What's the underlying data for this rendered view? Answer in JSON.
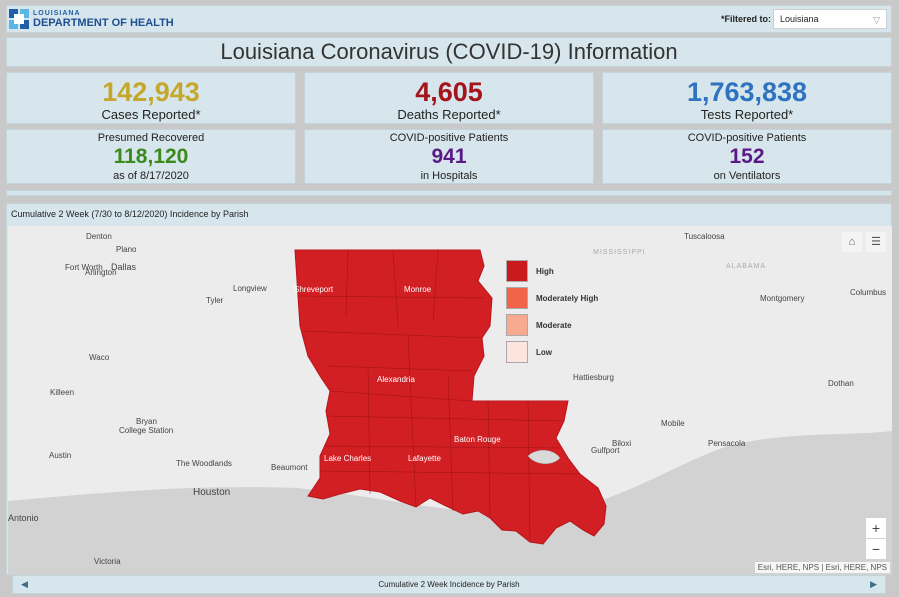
{
  "header": {
    "logo_state": "LOUISIANA",
    "logo_dept": "DEPARTMENT OF HEALTH",
    "filter_label": "*Filtered to:",
    "filter_value": "Louisiana"
  },
  "title": "Louisiana Coronavirus (COVID-19) Information",
  "stats": {
    "cases": {
      "value": "142,943",
      "label": "Cases Reported*",
      "color": "#c5a82b"
    },
    "deaths": {
      "value": "4,605",
      "label": "Deaths Reported*",
      "color": "#a5141b"
    },
    "tests": {
      "value": "1,763,838",
      "label": "Tests Reported*",
      "color": "#2f72c0"
    },
    "recovered": {
      "top": "Presumed Recovered",
      "value": "118,120",
      "bottom": "as of 8/17/2020",
      "color": "#3a8a1c"
    },
    "hospitals": {
      "top": "COVID-positive Patients",
      "value": "941",
      "bottom": "in Hospitals",
      "color": "#5a1a86"
    },
    "ventilators": {
      "top": "COVID-positive Patients",
      "value": "152",
      "bottom": "on Ventilators",
      "color": "#5a1a86"
    }
  },
  "map": {
    "title": "Cumulative 2 Week (7/30 to 8/12/2020) Incidence by Parish",
    "legend": [
      {
        "label": "High",
        "color": "#c91a1e"
      },
      {
        "label": "Moderately High",
        "color": "#f26449"
      },
      {
        "label": "Moderate",
        "color": "#f7aa90"
      },
      {
        "label": "Low",
        "color": "#fde4dd"
      }
    ],
    "fill_color": "#d21f24",
    "cities": [
      "Denton",
      "Plano",
      "Fort Worth",
      "Dallas",
      "Arlington",
      "Tyler",
      "Longview",
      "Shreveport",
      "Monroe",
      "Waco",
      "Killeen",
      "Bryan",
      "College Station",
      "Austin",
      "The Woodlands",
      "Houston",
      "Beaumont",
      "Lake Charles",
      "Lafayette",
      "Baton Rouge",
      "Alexandria",
      "Antonio",
      "Victoria",
      "Tuscaloosa",
      "Montgomery",
      "Columbus",
      "Hattiesburg",
      "Dothan",
      "Mobile",
      "Pensacola",
      "Biloxi",
      "Gulfport"
    ],
    "states": [
      "MISSISSIPPI",
      "ALABAMA"
    ],
    "zoom_in": "+",
    "zoom_out": "−",
    "attribution": "Esri, HERE, NPS | Esri, HERE, NPS"
  },
  "footer": {
    "label": "Cumulative 2 Week Incidence by Parish",
    "prev": "◀",
    "next": "▶"
  }
}
